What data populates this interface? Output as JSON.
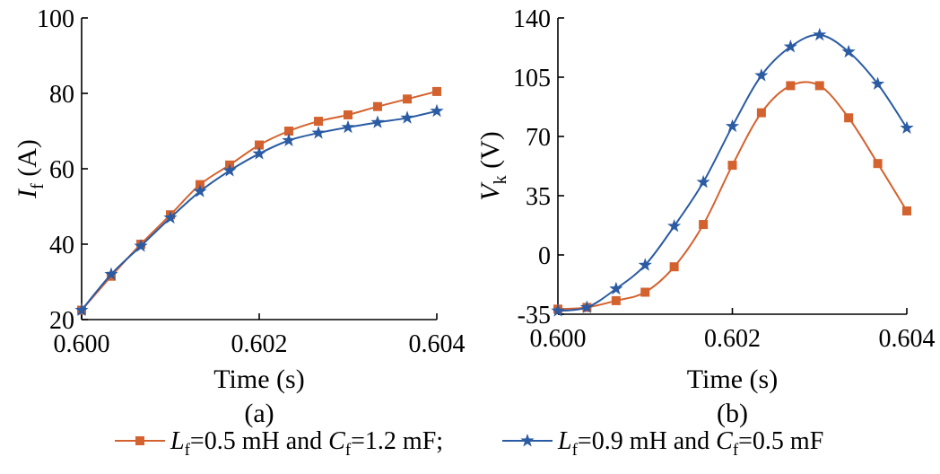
{
  "chart_data": [
    {
      "type": "line",
      "panel_label": "(a)",
      "xlabel": "Time (s)",
      "ylabel": {
        "main": "I",
        "sub": "f",
        "unit": " (A)"
      },
      "xlim": [
        0.6,
        0.604
      ],
      "ylim": [
        20,
        100
      ],
      "x_ticks": [
        "0.600",
        "0.602",
        "0.604"
      ],
      "y_ticks": [
        "20",
        "40",
        "60",
        "80",
        "100"
      ],
      "series": [
        {
          "marker": "square",
          "color": "#d4622f",
          "x": [
            0.6,
            0.600333,
            0.600667,
            0.601,
            0.601333,
            0.601667,
            0.602,
            0.602333,
            0.602667,
            0.603,
            0.603333,
            0.603667,
            0.604
          ],
          "y": [
            22.5,
            31.5,
            40.0,
            47.8,
            55.8,
            61.0,
            66.3,
            70.0,
            72.6,
            74.3,
            76.5,
            78.5,
            80.5
          ]
        },
        {
          "marker": "star",
          "color": "#2a5ba3",
          "x": [
            0.6,
            0.600333,
            0.600667,
            0.601,
            0.601333,
            0.601667,
            0.602,
            0.602333,
            0.602667,
            0.603,
            0.603333,
            0.603667,
            0.604
          ],
          "y": [
            22.5,
            32.0,
            39.5,
            47.0,
            54.0,
            59.5,
            64.0,
            67.5,
            69.5,
            71.0,
            72.3,
            73.5,
            75.3
          ]
        }
      ]
    },
    {
      "type": "line",
      "panel_label": "(b)",
      "xlabel": "Time (s)",
      "ylabel": {
        "main": "V",
        "sub": "k",
        "unit": " (V)"
      },
      "xlim": [
        0.6,
        0.604
      ],
      "ylim": [
        -35,
        140
      ],
      "x_ticks": [
        "0.600",
        "0.602",
        "0.604"
      ],
      "y_ticks": [
        "-35",
        "0",
        "35",
        "70",
        "105",
        "140"
      ],
      "series": [
        {
          "marker": "square",
          "color": "#d4622f",
          "x": [
            0.6,
            0.600333,
            0.600667,
            0.601,
            0.601333,
            0.601667,
            0.602,
            0.602333,
            0.602667,
            0.603,
            0.603333,
            0.603667,
            0.604
          ],
          "y": [
            -32,
            -31,
            -27,
            -22,
            -7,
            18,
            53,
            84,
            100,
            100,
            81,
            54,
            26
          ]
        },
        {
          "marker": "star",
          "color": "#2a5ba3",
          "x": [
            0.6,
            0.600333,
            0.600667,
            0.601,
            0.601333,
            0.601667,
            0.602,
            0.602333,
            0.602667,
            0.603,
            0.603333,
            0.603667,
            0.604
          ],
          "y": [
            -33,
            -31,
            -20,
            -6,
            17,
            43,
            76,
            106,
            123,
            130,
            120,
            101,
            75
          ]
        }
      ]
    }
  ],
  "legend": {
    "placement": "bottom-center",
    "entries": [
      {
        "marker": "square",
        "color": "#d4622f",
        "parts": [
          "L",
          "f",
          "=0.5 mH and ",
          "C",
          "f",
          "=1.2 mF;"
        ]
      },
      {
        "marker": "star",
        "color": "#2a5ba3",
        "parts": [
          "L",
          "f",
          "=0.9 mH and ",
          "C",
          "f",
          "=0.5 mF"
        ]
      }
    ]
  }
}
